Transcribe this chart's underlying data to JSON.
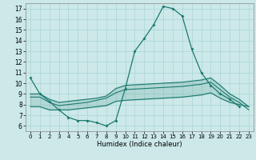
{
  "xlabel": "Humidex (Indice chaleur)",
  "background_color": "#cce8e8",
  "grid_color": "#aad4d4",
  "line_color": "#1a7a6e",
  "xlim": [
    -0.5,
    23.5
  ],
  "ylim": [
    5.5,
    17.5
  ],
  "yticks": [
    6,
    7,
    8,
    9,
    10,
    11,
    12,
    13,
    14,
    15,
    16,
    17
  ],
  "xticks": [
    0,
    1,
    2,
    3,
    4,
    5,
    6,
    7,
    8,
    9,
    10,
    11,
    12,
    13,
    14,
    15,
    16,
    17,
    18,
    19,
    20,
    21,
    22,
    23
  ],
  "line1": [
    10.5,
    9.0,
    8.3,
    7.5,
    6.8,
    6.5,
    6.5,
    6.3,
    6.0,
    6.5,
    9.5,
    13.0,
    14.2,
    15.5,
    17.2,
    17.0,
    16.3,
    13.2,
    11.0,
    9.8,
    9.0,
    8.5,
    7.8,
    null
  ],
  "line2": [
    9.0,
    9.0,
    8.5,
    8.2,
    8.3,
    8.4,
    8.5,
    8.6,
    8.8,
    9.5,
    9.8,
    9.85,
    9.9,
    9.95,
    10.0,
    10.05,
    10.1,
    10.2,
    10.3,
    10.5,
    9.8,
    9.0,
    8.5,
    7.8
  ],
  "line3": [
    8.7,
    8.7,
    8.2,
    7.9,
    8.0,
    8.1,
    8.2,
    8.4,
    8.6,
    9.1,
    9.4,
    9.45,
    9.5,
    9.55,
    9.6,
    9.65,
    9.7,
    9.8,
    9.9,
    10.1,
    9.4,
    8.7,
    8.2,
    7.5
  ],
  "line4": [
    7.8,
    7.8,
    7.5,
    7.5,
    7.5,
    7.6,
    7.7,
    7.8,
    7.9,
    8.3,
    8.4,
    8.45,
    8.5,
    8.55,
    8.6,
    8.65,
    8.7,
    8.8,
    8.9,
    9.1,
    8.6,
    8.2,
    8.0,
    7.8
  ]
}
